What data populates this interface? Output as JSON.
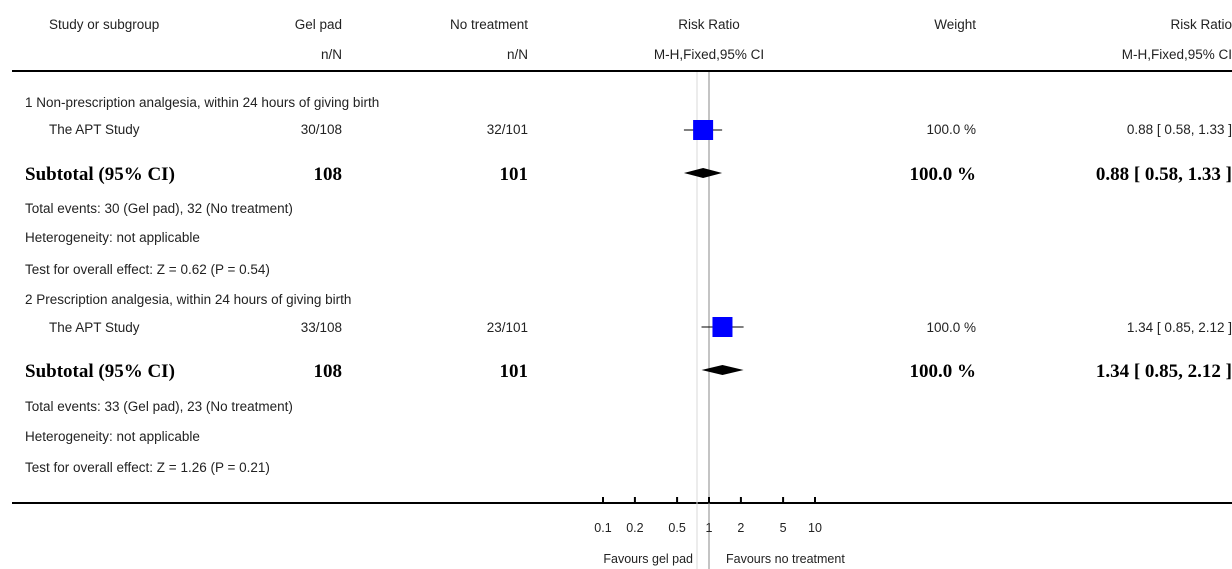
{
  "header": {
    "study": "Study or subgroup",
    "gel": "Gel pad",
    "notreat": "No treatment",
    "rr": "Risk Ratio",
    "weight": "Weight",
    "rr2": "Risk Ratio",
    "gel_sub": "n/N",
    "notreat_sub": "n/N",
    "rr_sub": "M-H,Fixed,95% CI",
    "rr2_sub": "M-H,Fixed,95% CI"
  },
  "groups": [
    {
      "title": "1 Non-prescription analgesia, within 24 hours of giving birth",
      "study": {
        "name": "The APT Study",
        "gel": "30/108",
        "notreat": "32/101",
        "weight": "100.0 %",
        "ci_text": "0.88 [ 0.58, 1.33 ]"
      },
      "subtotal": {
        "label": "Subtotal (95% CI)",
        "gel": "108",
        "notreat": "101",
        "weight": "100.0 %",
        "ci_text": "0.88 [ 0.58, 1.33 ]"
      },
      "total_events": "Total events: 30 (Gel pad), 32 (No treatment)",
      "heterogeneity": "Heterogeneity: not applicable",
      "overall_effect": "Test for overall effect: Z = 0.62 (P = 0.54)"
    },
    {
      "title": "2 Prescription analgesia, within 24 hours of giving birth",
      "study": {
        "name": "The APT Study",
        "gel": "33/108",
        "notreat": "23/101",
        "weight": "100.0 %",
        "ci_text": "1.34 [ 0.85, 2.12 ]"
      },
      "subtotal": {
        "label": "Subtotal (95% CI)",
        "gel": "108",
        "notreat": "101",
        "weight": "100.0 %",
        "ci_text": "1.34 [ 0.85, 2.12 ]"
      },
      "total_events": "Total events: 33 (Gel pad), 23 (No treatment)",
      "heterogeneity": "Heterogeneity: not applicable",
      "overall_effect": "Test for overall effect: Z = 1.26 (P = 0.21)"
    }
  ],
  "axis": {
    "ticks": [
      "0.1",
      "0.2",
      "0.5",
      "1",
      "2",
      "5",
      "10"
    ],
    "favours_left": "Favours gel pad",
    "favours_right": "Favours no treatment"
  },
  "colors": {
    "marker": "#0000ff",
    "line": "#000000",
    "axis": "#000000"
  },
  "chart_data": {
    "type": "forest",
    "scale": "log",
    "xlim": [
      0.1,
      10
    ],
    "null_value": 1,
    "studies": [
      {
        "group": 1,
        "name": "The APT Study",
        "estimate": 0.88,
        "lower": 0.58,
        "upper": 1.33,
        "weight": 100.0
      },
      {
        "group": 2,
        "name": "The APT Study",
        "estimate": 1.34,
        "lower": 0.85,
        "upper": 2.12,
        "weight": 100.0
      }
    ],
    "subtotals": [
      {
        "group": 1,
        "estimate": 0.88,
        "lower": 0.58,
        "upper": 1.33
      },
      {
        "group": 2,
        "estimate": 1.34,
        "lower": 0.85,
        "upper": 2.12
      }
    ]
  }
}
